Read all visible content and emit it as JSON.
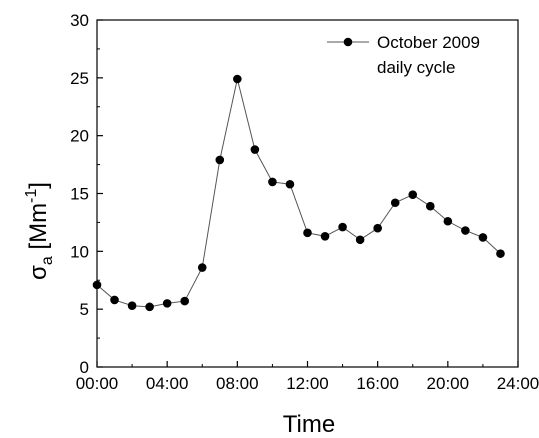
{
  "chart_data": {
    "type": "line",
    "xlabel": "Time",
    "ylabel": {
      "base": "σ",
      "sub": "a",
      "unit_open": " [Mm",
      "sup": "-1",
      "unit_close": "]"
    },
    "xlim": [
      "00:00",
      "24:00"
    ],
    "ylim": [
      0,
      30
    ],
    "x_ticks": [
      "00:00",
      "04:00",
      "08:00",
      "12:00",
      "16:00",
      "20:00",
      "24:00"
    ],
    "y_ticks": [
      "0",
      "5",
      "10",
      "15",
      "20",
      "25",
      "30"
    ],
    "grid": false,
    "legend_position": "top-right",
    "legend": [
      "October 2009",
      "daily cycle"
    ],
    "series": [
      {
        "name": "October 2009 daily cycle",
        "color": "#000000",
        "x": [
          "00:00",
          "01:00",
          "02:00",
          "03:00",
          "04:00",
          "05:00",
          "06:00",
          "07:00",
          "08:00",
          "09:00",
          "10:00",
          "11:00",
          "12:00",
          "13:00",
          "14:00",
          "15:00",
          "16:00",
          "17:00",
          "18:00",
          "19:00",
          "20:00",
          "21:00",
          "22:00",
          "23:00"
        ],
        "values": [
          7.1,
          5.8,
          5.3,
          5.2,
          5.5,
          5.7,
          8.6,
          17.9,
          24.9,
          18.8,
          16.0,
          15.8,
          11.6,
          11.3,
          12.1,
          11.0,
          12.0,
          14.2,
          14.9,
          13.9,
          12.6,
          11.8,
          11.2,
          9.8
        ]
      }
    ]
  }
}
